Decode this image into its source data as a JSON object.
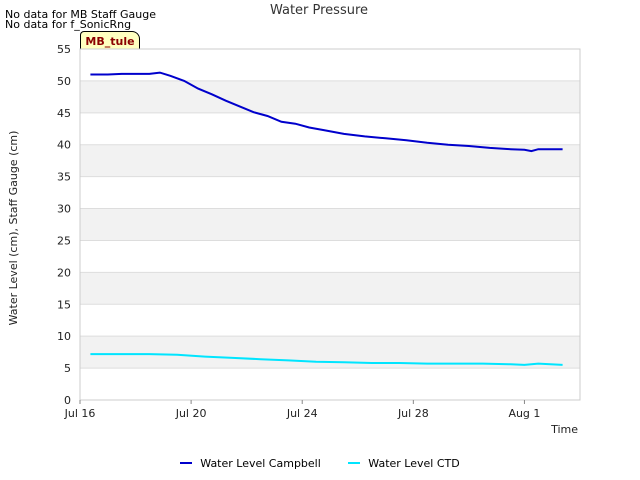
{
  "notes": [
    "No data for MB Staff Gauge",
    "No data for f_SonicRng"
  ],
  "station_tag": "MB_tule",
  "colors": {
    "campbell": "#0000cc",
    "ctd": "#00e5ff",
    "band": "#f2f2f2",
    "grid": "#dddddd"
  },
  "chart_data": {
    "type": "line",
    "title": "Water Pressure",
    "xlabel": "Time",
    "ylabel": "Water Level (cm), Staff Gauge (cm)",
    "ylim": [
      0,
      55
    ],
    "yticks": [
      0,
      5,
      10,
      15,
      20,
      25,
      30,
      35,
      40,
      45,
      50,
      55
    ],
    "xlim": [
      "2024-07-16",
      "2024-08-03"
    ],
    "xticks": [
      {
        "date": "2024-07-16",
        "label": "Jul 16"
      },
      {
        "date": "2024-07-20",
        "label": "Jul 20"
      },
      {
        "date": "2024-07-24",
        "label": "Jul 24"
      },
      {
        "date": "2024-07-28",
        "label": "Jul 28"
      },
      {
        "date": "2024-08-01",
        "label": "Aug 1"
      }
    ],
    "grid": true,
    "legend_position": "bottom",
    "series": [
      {
        "name": "Water Level Campbell",
        "points": [
          [
            "2024-07-16T09:00",
            51.0
          ],
          [
            "2024-07-17T00:00",
            51.0
          ],
          [
            "2024-07-17T12:00",
            51.1
          ],
          [
            "2024-07-18T00:00",
            51.1
          ],
          [
            "2024-07-18T12:00",
            51.1
          ],
          [
            "2024-07-18T21:00",
            51.3
          ],
          [
            "2024-07-19T06:00",
            50.8
          ],
          [
            "2024-07-19T18:00",
            50.0
          ],
          [
            "2024-07-20T06:00",
            48.8
          ],
          [
            "2024-07-20T18:00",
            47.9
          ],
          [
            "2024-07-21T06:00",
            46.9
          ],
          [
            "2024-07-21T18:00",
            46.0
          ],
          [
            "2024-07-22T06:00",
            45.1
          ],
          [
            "2024-07-22T18:00",
            44.5
          ],
          [
            "2024-07-23T06:00",
            43.6
          ],
          [
            "2024-07-23T18:00",
            43.3
          ],
          [
            "2024-07-24T06:00",
            42.7
          ],
          [
            "2024-07-24T18:00",
            42.3
          ],
          [
            "2024-07-25T12:00",
            41.7
          ],
          [
            "2024-07-26T06:00",
            41.3
          ],
          [
            "2024-07-27T00:00",
            41.0
          ],
          [
            "2024-07-27T18:00",
            40.7
          ],
          [
            "2024-07-28T12:00",
            40.3
          ],
          [
            "2024-07-29T06:00",
            40.0
          ],
          [
            "2024-07-30T00:00",
            39.8
          ],
          [
            "2024-07-30T18:00",
            39.5
          ],
          [
            "2024-07-31T12:00",
            39.3
          ],
          [
            "2024-08-01T00:00",
            39.2
          ],
          [
            "2024-08-01T06:00",
            39.0
          ],
          [
            "2024-08-01T12:00",
            39.3
          ],
          [
            "2024-08-02T00:00",
            39.3
          ],
          [
            "2024-08-02T09:00",
            39.3
          ]
        ]
      },
      {
        "name": "Water Level CTD",
        "points": [
          [
            "2024-07-16T09:00",
            7.2
          ],
          [
            "2024-07-17T12:00",
            7.2
          ],
          [
            "2024-07-18T12:00",
            7.2
          ],
          [
            "2024-07-19T12:00",
            7.1
          ],
          [
            "2024-07-20T12:00",
            6.8
          ],
          [
            "2024-07-21T12:00",
            6.6
          ],
          [
            "2024-07-22T12:00",
            6.4
          ],
          [
            "2024-07-23T12:00",
            6.2
          ],
          [
            "2024-07-24T12:00",
            6.0
          ],
          [
            "2024-07-25T12:00",
            5.9
          ],
          [
            "2024-07-26T12:00",
            5.8
          ],
          [
            "2024-07-27T12:00",
            5.8
          ],
          [
            "2024-07-28T12:00",
            5.7
          ],
          [
            "2024-07-29T12:00",
            5.7
          ],
          [
            "2024-07-30T12:00",
            5.7
          ],
          [
            "2024-07-31T12:00",
            5.6
          ],
          [
            "2024-08-01T00:00",
            5.5
          ],
          [
            "2024-08-01T12:00",
            5.7
          ],
          [
            "2024-08-02T09:00",
            5.5
          ]
        ]
      }
    ]
  }
}
